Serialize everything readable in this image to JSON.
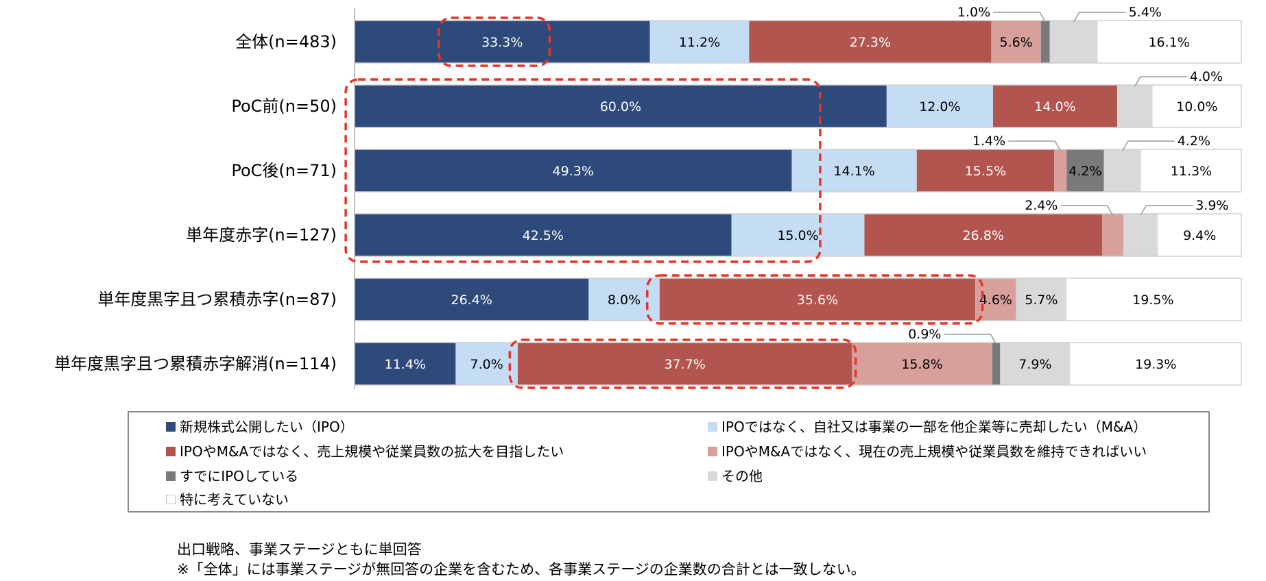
{
  "chart_data": {
    "type": "bar",
    "orientation": "horizontal",
    "stacked": true,
    "normalized_percent": true,
    "categories": [
      "全体(n=483)",
      "PoC前(n=50)",
      "PoC後(n=71)",
      "単年度赤字(n=127)",
      "単年度黒字且つ累積赤字(n=87)",
      "単年度黒字且つ累積赤字解消(n=114)"
    ],
    "series": [
      {
        "name": "新規株式公開したい（IPO）",
        "color": "#2e4a7a",
        "label_color": "#ffffff",
        "values": [
          33.3,
          60.0,
          49.3,
          42.5,
          26.4,
          11.4
        ],
        "labels": [
          "33.3%",
          "60.0%",
          "49.3%",
          "42.5%",
          "26.4%",
          "11.4%"
        ]
      },
      {
        "name": "IPOではなく、自社又は事業の一部を他企業等に売却したい（M&A）",
        "color": "#c5dcf5",
        "label_color": "#000000",
        "values": [
          11.2,
          12.0,
          14.1,
          15.0,
          8.0,
          7.0
        ],
        "labels": [
          "11.2%",
          "12.0%",
          "14.1%",
          "15.0%",
          "8.0%",
          "7.0%"
        ]
      },
      {
        "name": "IPOやM&Aではなく、売上規模や従業員数の拡大を目指したい",
        "color": "#b3554f",
        "label_color": "#ffffff",
        "values": [
          27.3,
          14.0,
          15.5,
          26.8,
          35.6,
          37.7
        ],
        "labels": [
          "27.3%",
          "14.0%",
          "15.5%",
          "26.8%",
          "35.6%",
          "37.7%"
        ]
      },
      {
        "name": "IPOやM&Aではなく、現在の売上規模や従業員数を維持できればいい",
        "color": "#d8a09b",
        "label_color": "#000000",
        "values": [
          5.6,
          0,
          1.4,
          2.4,
          4.6,
          15.8
        ],
        "labels": [
          "5.6%",
          "",
          "1.4%",
          "2.4%",
          "4.6%",
          "15.8%"
        ]
      },
      {
        "name": "すでにIPOしている",
        "color": "#7a7a7a",
        "label_color": "#000000",
        "values": [
          1.0,
          0,
          4.2,
          0,
          0,
          0.9
        ],
        "labels": [
          "1.0%",
          "",
          "4.2%",
          "",
          "",
          "0.9%"
        ]
      },
      {
        "name": "その他",
        "color": "#d9d9d9",
        "label_color": "#000000",
        "values": [
          5.4,
          4.0,
          4.2,
          3.9,
          5.7,
          7.9
        ],
        "labels": [
          "5.4%",
          "4.0%",
          "4.2%",
          "3.9%",
          "5.7%",
          "7.9%"
        ]
      },
      {
        "name": "特に考えていない",
        "color": "#ffffff",
        "label_color": "#000000",
        "values": [
          16.1,
          10.0,
          11.3,
          9.4,
          19.5,
          19.3
        ],
        "labels": [
          "16.1%",
          "10.0%",
          "11.3%",
          "9.4%",
          "19.5%",
          "19.3%"
        ]
      }
    ],
    "callouts": [
      {
        "row": 0,
        "series": 4,
        "text": "1.0%",
        "side": "left"
      },
      {
        "row": 0,
        "series": 5,
        "text": "5.4%",
        "side": "right"
      },
      {
        "row": 1,
        "series": 5,
        "text": "4.0%",
        "side": "right"
      },
      {
        "row": 2,
        "series": 3,
        "text": "1.4%",
        "side": "left"
      },
      {
        "row": 2,
        "series": 5,
        "text": "4.2%",
        "side": "right"
      },
      {
        "row": 3,
        "series": 3,
        "text": "2.4%",
        "side": "left"
      },
      {
        "row": 3,
        "series": 5,
        "text": "3.9%",
        "side": "right"
      },
      {
        "row": 5,
        "series": 4,
        "text": "0.9%",
        "side": "left"
      }
    ],
    "highlights": [
      {
        "row_start": 0,
        "row_end": 0,
        "from": 9.5,
        "to": 22.0
      },
      {
        "row_start": 1,
        "row_end": 3,
        "from": -1.0,
        "to": 52.5
      },
      {
        "row_start": 4,
        "row_end": 4,
        "from": 33.0,
        "to": 70.8
      },
      {
        "row_start": 5,
        "row_end": 5,
        "from": 17.5,
        "to": 56.5
      }
    ],
    "highlight_color": "#e53528",
    "xlim": [
      0,
      100
    ],
    "legend_placement": "bottom",
    "grid": false
  },
  "legend": [
    {
      "label": "新規株式公開したい（IPO）",
      "color": "#2e4a7a"
    },
    {
      "label": "IPOではなく、自社又は事業の一部を他企業等に売却したい（M&A）",
      "color": "#c5dcf5"
    },
    {
      "label": "IPOやM&Aではなく、売上規模や従業員数の拡大を目指したい",
      "color": "#b3554f"
    },
    {
      "label": "IPOやM&Aではなく、現在の売上規模や従業員数を維持できればいい",
      "color": "#d8a09b"
    },
    {
      "label": "すでにIPOしている",
      "color": "#7a7a7a"
    },
    {
      "label": "その他",
      "color": "#d9d9d9"
    },
    {
      "label": "特に考えていない",
      "color": "#ffffff"
    }
  ],
  "notes": {
    "line1": "出口戦略、事業ステージともに単回答",
    "line2": "※「全体」には事業ステージが無回答の企業を含むため、各事業ステージの企業数の合計とは一致しない。"
  }
}
